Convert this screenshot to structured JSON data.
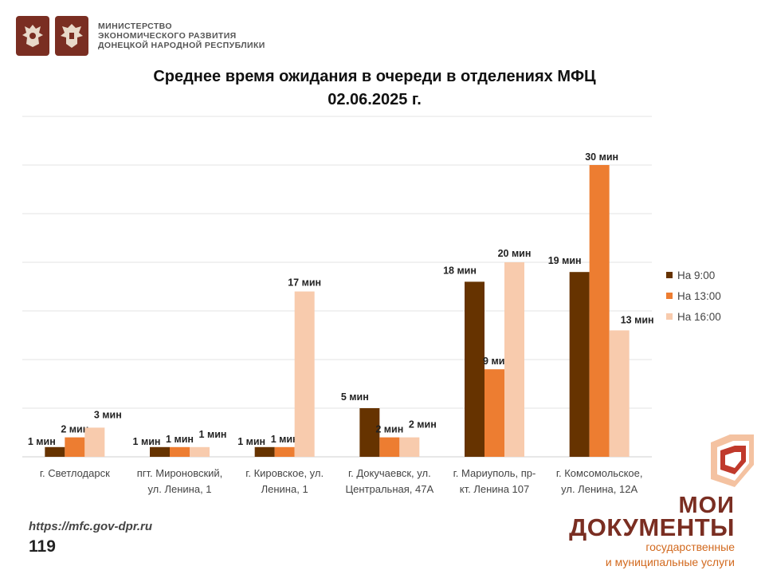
{
  "header": {
    "ministry_lines": [
      "МИНИСТЕРСТВО",
      "ЭКОНОМИЧЕСКОГО РАЗВИТИЯ",
      "ДОНЕЦКОЙ НАРОДНОЙ РЕСПУБЛИКИ"
    ],
    "emblems": [
      "russia-coat-of-arms-icon",
      "dpr-coat-of-arms-icon"
    ]
  },
  "chart_data": {
    "type": "bar",
    "title": "Среднее время ожидания в очереди в отделениях МФЦ",
    "subtitle": "02.06.2025 г.",
    "categories": [
      [
        "г. Светлодарск"
      ],
      [
        "пгт. Мироновский,",
        "ул. Ленина, 1"
      ],
      [
        "г. Кировское, ул.",
        "Ленина, 1"
      ],
      [
        "г. Докучаевск, ул.",
        "Центральная, 47А"
      ],
      [
        "г. Мариуполь, пр-",
        "кт. Ленина 107"
      ],
      [
        "г. Комсомольское,",
        "ул. Ленина, 12А"
      ]
    ],
    "series": [
      {
        "name": "На 9:00",
        "color": "#663300",
        "values": [
          1,
          1,
          1,
          5,
          18,
          19
        ]
      },
      {
        "name": "На 13:00",
        "color": "#ed7d31",
        "values": [
          2,
          1,
          1,
          2,
          9,
          30
        ]
      },
      {
        "name": "На 16:00",
        "color": "#f8cbad",
        "values": [
          3,
          1,
          17,
          2,
          20,
          13
        ]
      }
    ],
    "value_suffix": " мин",
    "ylim": [
      0,
      35
    ],
    "grid": true,
    "legend": "right"
  },
  "footer": {
    "url": "https://mfc.gov-dpr.ru",
    "page": "119"
  },
  "brand": {
    "line1": "МОИ",
    "line2": "ДОКУМЕНТЫ",
    "tagline1": "государственные",
    "tagline2": "и муниципальные услуги",
    "color": "#7a2e22",
    "accent": "#d2691e"
  }
}
